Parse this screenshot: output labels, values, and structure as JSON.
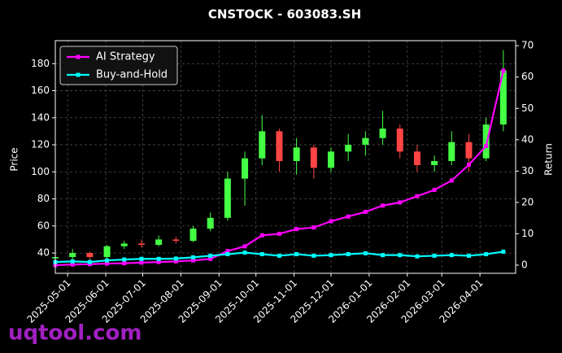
{
  "chart_data": {
    "type": "candlestick",
    "title": "CNSTOCK - 603083.SH",
    "y_label": "Price",
    "y2_label": "Return",
    "watermark": "uqtool.com",
    "x": [
      "2025-04-21",
      "2025-05-05",
      "2025-05-19",
      "2025-06-02",
      "2025-06-16",
      "2025-06-30",
      "2025-07-14",
      "2025-07-28",
      "2025-08-11",
      "2025-08-25",
      "2025-09-08",
      "2025-09-22",
      "2025-10-06",
      "2025-10-20",
      "2025-11-03",
      "2025-11-17",
      "2025-12-01",
      "2025-12-15",
      "2025-12-29",
      "2026-01-12",
      "2026-01-26",
      "2026-02-09",
      "2026-02-23",
      "2026-03-09",
      "2026-03-23",
      "2026-04-06",
      "2026-04-20"
    ],
    "open": [
      36,
      37,
      40,
      37,
      45,
      47,
      46,
      50,
      49,
      58,
      66,
      95,
      110,
      130,
      108,
      118,
      103,
      115,
      120,
      125,
      132,
      115,
      105,
      108,
      122,
      110,
      135
    ],
    "high": [
      38,
      43,
      41,
      46,
      49,
      50,
      53,
      52,
      60,
      70,
      100,
      115,
      142,
      132,
      125,
      120,
      118,
      128,
      130,
      145,
      135,
      120,
      112,
      130,
      128,
      140,
      190
    ],
    "low": [
      34,
      35,
      35,
      36,
      43,
      44,
      45,
      47,
      48,
      56,
      64,
      75,
      105,
      100,
      98,
      95,
      100,
      108,
      112,
      120,
      110,
      100,
      100,
      105,
      100,
      108,
      130
    ],
    "close": [
      37,
      40,
      37,
      45,
      47,
      46,
      50,
      49,
      58,
      66,
      95,
      110,
      130,
      108,
      118,
      103,
      115,
      120,
      125,
      132,
      115,
      105,
      108,
      122,
      110,
      135,
      175
    ],
    "up_color": "#44ff44",
    "down_color": "#ff4444",
    "series": [
      {
        "name": "AI Strategy",
        "color": "#ff00ff",
        "axis": "y2",
        "values": [
          0,
          0.2,
          0.3,
          0.5,
          0.6,
          0.8,
          1,
          1.2,
          1.5,
          2,
          4.5,
          6,
          9.5,
          10,
          11.5,
          12,
          14,
          15.5,
          17,
          19,
          20,
          22,
          24,
          27,
          32,
          38,
          62
        ]
      },
      {
        "name": "Buy-and-Hold",
        "color": "#00ffff",
        "axis": "y2",
        "values": [
          1,
          1.2,
          1,
          1.5,
          1.8,
          2,
          2,
          2.1,
          2.5,
          3,
          3.5,
          4,
          3.5,
          3,
          3.5,
          3,
          3.2,
          3.5,
          3.8,
          3.2,
          3.2,
          2.8,
          3,
          3.2,
          3,
          3.5,
          4.3
        ]
      }
    ],
    "xlim": [
      "2025-04-21",
      "2026-04-30"
    ],
    "xticks": [
      "2025-05-01",
      "2025-06-01",
      "2025-07-01",
      "2025-08-01",
      "2025-09-01",
      "2025-10-01",
      "2025-11-01",
      "2025-12-01",
      "2026-01-01",
      "2026-02-01",
      "2026-03-01",
      "2026-04-01"
    ],
    "ylim": [
      25,
      197
    ],
    "yticks": [
      40,
      60,
      80,
      100,
      120,
      140,
      160,
      180
    ],
    "y2lim": [
      -2.6,
      71.6
    ],
    "y2ticks": [
      0,
      10,
      20,
      30,
      40,
      50,
      60,
      70
    ],
    "grid": true,
    "legend": "upper left"
  }
}
